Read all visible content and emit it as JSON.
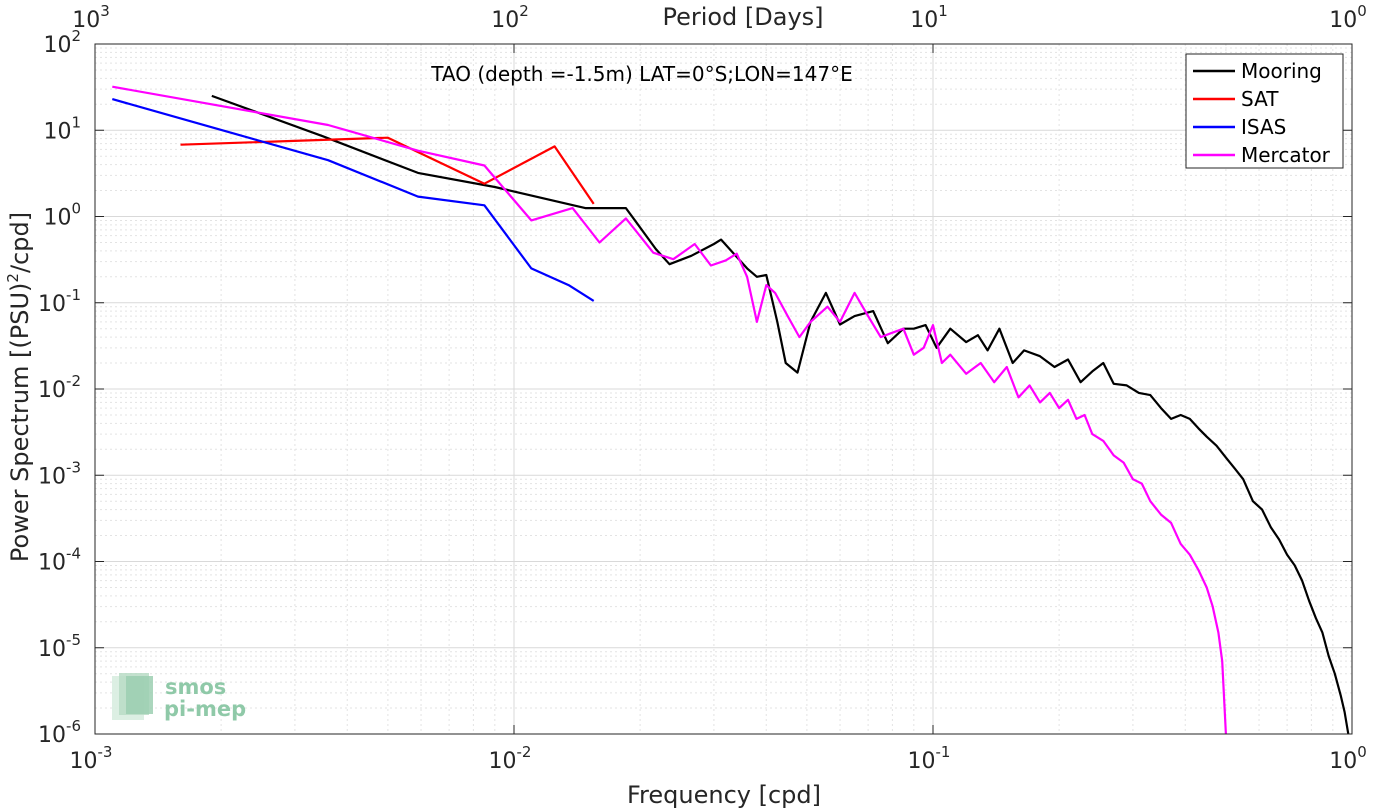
{
  "chart_data": {
    "type": "line",
    "title": "TAO (depth =-1.5m) LAT=0°S;LON=147°E",
    "xlabel": "Frequency [cpd]",
    "ylabel": "Power Spectrum [(PSU)²/cpd]",
    "ylabel_main": "Power Spectrum [(PSU)",
    "ylabel_sup": "2",
    "ylabel_end": "/cpd]",
    "top_xlabel": "Period [Days]",
    "xscale": "log",
    "yscale": "log",
    "xlim": [
      0.001,
      1
    ],
    "ylim": [
      1e-06,
      100
    ],
    "grid": true,
    "legend_placement": "top-right",
    "x_ticks": [
      {
        "base": "10",
        "exp": "-3",
        "value": 0.001
      },
      {
        "base": "10",
        "exp": "-2",
        "value": 0.01
      },
      {
        "base": "10",
        "exp": "-1",
        "value": 0.1
      },
      {
        "base": "10",
        "exp": "0",
        "value": 1
      }
    ],
    "top_ticks": [
      {
        "base": "10",
        "exp": "3",
        "value": 0.001
      },
      {
        "base": "10",
        "exp": "2",
        "value": 0.01
      },
      {
        "base": "10",
        "exp": "1",
        "value": 0.1
      },
      {
        "base": "10",
        "exp": "0",
        "value": 1
      }
    ],
    "y_ticks": [
      {
        "base": "10",
        "exp": "2",
        "value": 100
      },
      {
        "base": "10",
        "exp": "1",
        "value": 10
      },
      {
        "base": "10",
        "exp": "0",
        "value": 1
      },
      {
        "base": "10",
        "exp": "-1",
        "value": 0.1
      },
      {
        "base": "10",
        "exp": "-2",
        "value": 0.01
      },
      {
        "base": "10",
        "exp": "-3",
        "value": 0.001
      },
      {
        "base": "10",
        "exp": "-4",
        "value": 0.0001
      },
      {
        "base": "10",
        "exp": "-5",
        "value": 1e-05
      },
      {
        "base": "10",
        "exp": "-6",
        "value": 1e-06
      }
    ],
    "series": [
      {
        "name": "Mooring",
        "color": "#000000",
        "points": [
          [
            0.0019,
            25
          ],
          [
            0.0035,
            8.5
          ],
          [
            0.0059,
            3.2
          ],
          [
            0.009,
            2.2
          ],
          [
            0.0148,
            1.25
          ],
          [
            0.0185,
            1.25
          ],
          [
            0.0218,
            0.42
          ],
          [
            0.0235,
            0.28
          ],
          [
            0.0265,
            0.35
          ],
          [
            0.03,
            0.48
          ],
          [
            0.0312,
            0.54
          ],
          [
            0.034,
            0.34
          ],
          [
            0.036,
            0.25
          ],
          [
            0.038,
            0.2
          ],
          [
            0.04,
            0.21
          ],
          [
            0.0425,
            0.06
          ],
          [
            0.0445,
            0.02
          ],
          [
            0.0475,
            0.0155
          ],
          [
            0.051,
            0.06
          ],
          [
            0.0555,
            0.13
          ],
          [
            0.06,
            0.056
          ],
          [
            0.065,
            0.07
          ],
          [
            0.072,
            0.08
          ],
          [
            0.078,
            0.034
          ],
          [
            0.085,
            0.05
          ],
          [
            0.09,
            0.05
          ],
          [
            0.096,
            0.055
          ],
          [
            0.102,
            0.03
          ],
          [
            0.11,
            0.05
          ],
          [
            0.12,
            0.035
          ],
          [
            0.128,
            0.042
          ],
          [
            0.135,
            0.028
          ],
          [
            0.144,
            0.05
          ],
          [
            0.155,
            0.02
          ],
          [
            0.165,
            0.028
          ],
          [
            0.18,
            0.024
          ],
          [
            0.195,
            0.018
          ],
          [
            0.21,
            0.022
          ],
          [
            0.225,
            0.012
          ],
          [
            0.24,
            0.016
          ],
          [
            0.255,
            0.02
          ],
          [
            0.27,
            0.0115
          ],
          [
            0.29,
            0.011
          ],
          [
            0.31,
            0.009
          ],
          [
            0.33,
            0.0085
          ],
          [
            0.35,
            0.006
          ],
          [
            0.37,
            0.0045
          ],
          [
            0.39,
            0.005
          ],
          [
            0.41,
            0.0045
          ],
          [
            0.43,
            0.0035
          ],
          [
            0.45,
            0.0028
          ],
          [
            0.475,
            0.0022
          ],
          [
            0.5,
            0.0016
          ],
          [
            0.525,
            0.0012
          ],
          [
            0.55,
            0.0009
          ],
          [
            0.58,
            0.0005
          ],
          [
            0.61,
            0.0004
          ],
          [
            0.64,
            0.00025
          ],
          [
            0.67,
            0.00018
          ],
          [
            0.7,
            0.00012
          ],
          [
            0.73,
            9e-05
          ],
          [
            0.76,
            6e-05
          ],
          [
            0.79,
            3.5e-05
          ],
          [
            0.82,
            2.2e-05
          ],
          [
            0.85,
            1.5e-05
          ],
          [
            0.88,
            8e-06
          ],
          [
            0.91,
            5e-06
          ],
          [
            0.94,
            2.8e-06
          ],
          [
            0.96,
            1.8e-06
          ],
          [
            0.98,
            1e-06
          ]
        ]
      },
      {
        "name": "SAT",
        "color": "#ff0000",
        "points": [
          [
            0.0016,
            6.8
          ],
          [
            0.005,
            8.2
          ],
          [
            0.0085,
            2.4
          ],
          [
            0.0125,
            6.5
          ],
          [
            0.0155,
            1.4
          ]
        ]
      },
      {
        "name": "ISAS",
        "color": "#0000ff",
        "points": [
          [
            0.0011,
            23
          ],
          [
            0.0036,
            4.5
          ],
          [
            0.0059,
            1.7
          ],
          [
            0.0085,
            1.35
          ],
          [
            0.011,
            0.25
          ],
          [
            0.0135,
            0.16
          ],
          [
            0.0155,
            0.105
          ]
        ]
      },
      {
        "name": "Mercator",
        "color": "#ff00ff",
        "points": [
          [
            0.0011,
            32
          ],
          [
            0.0036,
            11.5
          ],
          [
            0.0059,
            5.8
          ],
          [
            0.0085,
            3.9
          ],
          [
            0.011,
            0.9
          ],
          [
            0.0138,
            1.25
          ],
          [
            0.016,
            0.5
          ],
          [
            0.0185,
            0.95
          ],
          [
            0.0215,
            0.38
          ],
          [
            0.024,
            0.32
          ],
          [
            0.027,
            0.48
          ],
          [
            0.0295,
            0.27
          ],
          [
            0.032,
            0.31
          ],
          [
            0.034,
            0.37
          ],
          [
            0.036,
            0.2
          ],
          [
            0.038,
            0.06
          ],
          [
            0.04,
            0.16
          ],
          [
            0.042,
            0.13
          ],
          [
            0.045,
            0.07
          ],
          [
            0.048,
            0.04
          ],
          [
            0.051,
            0.06
          ],
          [
            0.056,
            0.09
          ],
          [
            0.06,
            0.06
          ],
          [
            0.065,
            0.13
          ],
          [
            0.07,
            0.07
          ],
          [
            0.075,
            0.04
          ],
          [
            0.08,
            0.045
          ],
          [
            0.085,
            0.05
          ],
          [
            0.09,
            0.025
          ],
          [
            0.095,
            0.03
          ],
          [
            0.1,
            0.055
          ],
          [
            0.105,
            0.02
          ],
          [
            0.11,
            0.025
          ],
          [
            0.12,
            0.015
          ],
          [
            0.13,
            0.02
          ],
          [
            0.14,
            0.012
          ],
          [
            0.15,
            0.018
          ],
          [
            0.16,
            0.008
          ],
          [
            0.17,
            0.011
          ],
          [
            0.18,
            0.007
          ],
          [
            0.19,
            0.009
          ],
          [
            0.2,
            0.006
          ],
          [
            0.21,
            0.0075
          ],
          [
            0.22,
            0.0045
          ],
          [
            0.23,
            0.005
          ],
          [
            0.24,
            0.003
          ],
          [
            0.255,
            0.0025
          ],
          [
            0.27,
            0.0017
          ],
          [
            0.285,
            0.0014
          ],
          [
            0.3,
            0.0009
          ],
          [
            0.315,
            0.0008
          ],
          [
            0.33,
            0.0005
          ],
          [
            0.35,
            0.00035
          ],
          [
            0.37,
            0.00028
          ],
          [
            0.39,
            0.00016
          ],
          [
            0.41,
            0.00012
          ],
          [
            0.43,
            8e-05
          ],
          [
            0.45,
            5e-05
          ],
          [
            0.465,
            3e-05
          ],
          [
            0.48,
            1.5e-05
          ],
          [
            0.49,
            7e-06
          ],
          [
            0.5,
            1e-06
          ]
        ]
      }
    ],
    "logo": {
      "line1": "smos",
      "line2": "pi-mep"
    }
  }
}
